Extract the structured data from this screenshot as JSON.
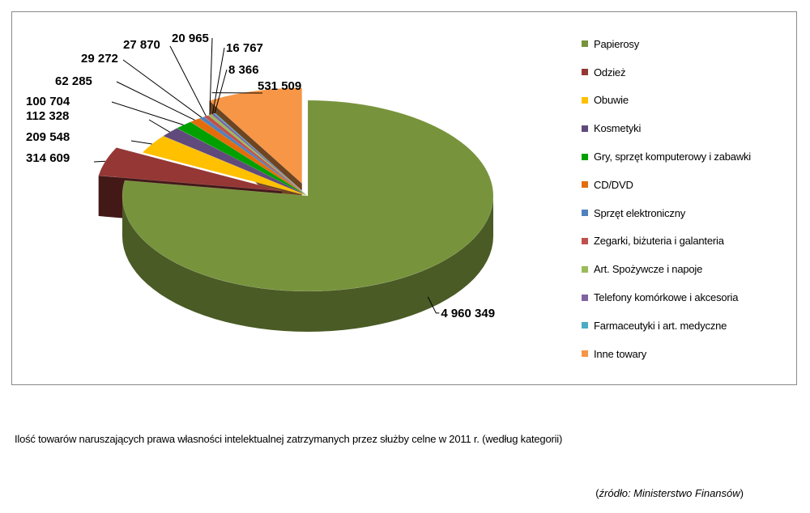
{
  "chart_data": {
    "type": "pie",
    "categories": [
      "Papierosy",
      "Odzież",
      "Obuwie",
      "Kosmetyki",
      "Gry, sprzęt komputerowy i zabawki",
      "CD/DVD",
      "Sprzęt elektroniczny",
      "Zegarki, biżuteria i galanteria",
      "Art. Spożywcze i napoje",
      "Telefony komórkowe i akcesoria",
      "Farmaceutyki i art. medyczne",
      "Inne towary"
    ],
    "values": [
      4960349,
      314609,
      209548,
      112328,
      100704,
      62285,
      29272,
      27870,
      20965,
      16767,
      8366,
      531509
    ],
    "value_labels": [
      "4 960 349",
      "314 609",
      "209 548",
      "112 328",
      "100 704",
      "62 285",
      "29 272",
      "27 870",
      "20 965",
      "16 767",
      "8 366",
      "531 509"
    ],
    "colors": [
      "#77933c",
      "#953735",
      "#ffc000",
      "#604a7b",
      "#00a000",
      "#e46c0a",
      "#4f81bd",
      "#c0504d",
      "#9bbb59",
      "#8064a2",
      "#4bacc6",
      "#f79646"
    ],
    "exploded": [
      1,
      11
    ],
    "legend_position": "right",
    "style": "3d-pie"
  },
  "caption": "Ilość towarów naruszających prawa własności intelektualnej zatrzymanych przez służby celne w 2011 r. (według kategorii)",
  "source": {
    "open": "(",
    "italic": "źródło: Ministerstwo Finansów",
    "close": ")"
  }
}
